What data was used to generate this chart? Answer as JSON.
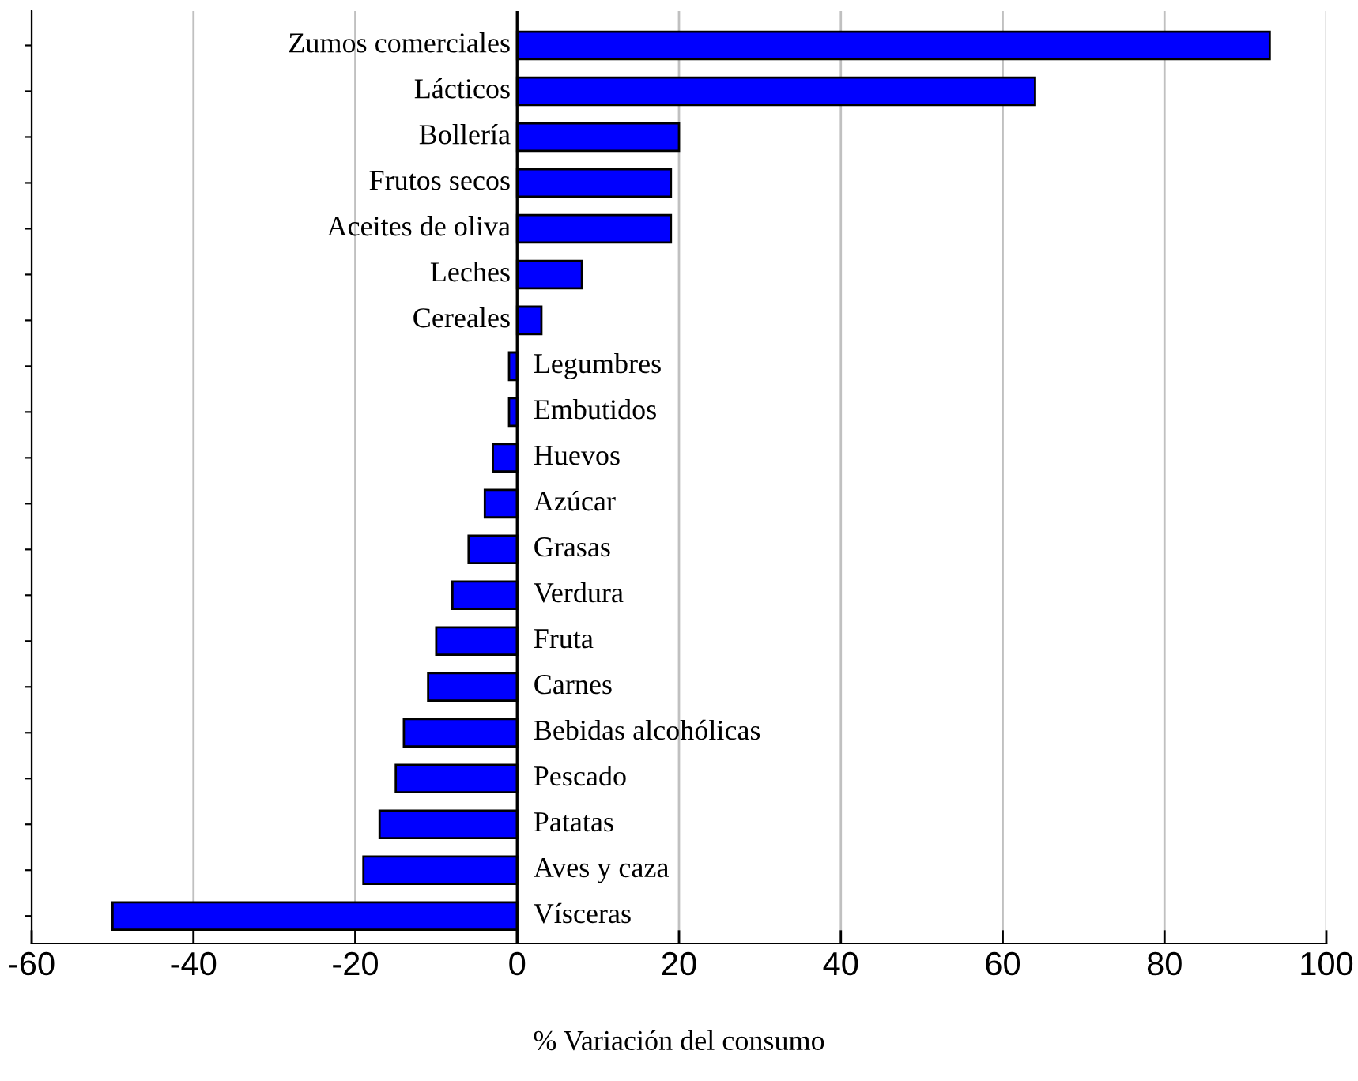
{
  "chart_data": {
    "type": "bar",
    "orientation": "horizontal",
    "xlabel": "% Variación del consumo",
    "categories": [
      "Zumos comerciales",
      "Lácticos",
      "Bollería",
      "Frutos secos",
      "Aceites de oliva",
      "Leches",
      "Cereales",
      "Legumbres",
      "Embutidos",
      "Huevos",
      "Azúcar",
      "Grasas",
      "Verdura",
      "Fruta",
      "Carnes",
      "Bebidas alcohólicas",
      "Pescado",
      "Patatas",
      "Aves y caza",
      "Vísceras"
    ],
    "values": [
      93,
      64,
      20,
      19,
      19,
      8,
      3,
      -1,
      -1,
      -3,
      -4,
      -6,
      -8,
      -10,
      -11,
      -14,
      -15,
      -17,
      -19,
      -50
    ],
    "color": "#0000ff",
    "xlim": [
      -60,
      100
    ],
    "xticks": [
      -60,
      -40,
      -20,
      0,
      20,
      40,
      60,
      80,
      100
    ],
    "grid": "x",
    "tick_labels": "x"
  }
}
